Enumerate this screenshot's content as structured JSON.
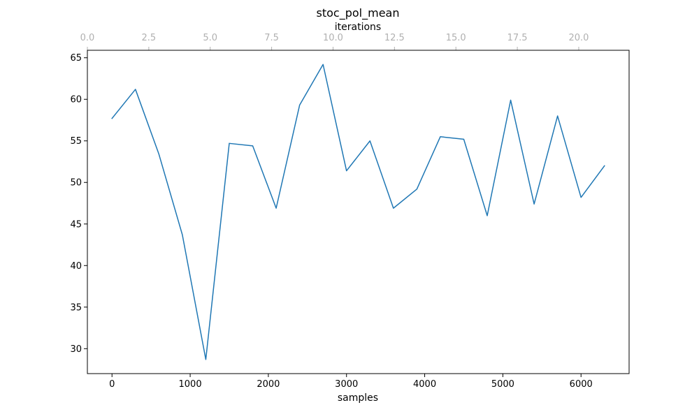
{
  "chart_data": {
    "type": "line",
    "title": "stoc_pol_mean",
    "xlabel": "samples",
    "ylabel": "",
    "secondary_xlabel": "iterations",
    "xlim": [
      -315,
      6615
    ],
    "ylim": [
      27,
      65.9
    ],
    "xticks": [
      0,
      1000,
      2000,
      3000,
      4000,
      5000,
      6000
    ],
    "xtick_labels": [
      "0",
      "1000",
      "2000",
      "3000",
      "4000",
      "5000",
      "6000"
    ],
    "yticks": [
      30,
      35,
      40,
      45,
      50,
      55,
      60,
      65
    ],
    "ytick_labels": [
      "30",
      "35",
      "40",
      "45",
      "50",
      "55",
      "60",
      "65"
    ],
    "secondary_xlim": [
      0,
      22.05
    ],
    "secondary_xticks": [
      0,
      2.5,
      5,
      7.5,
      10,
      12.5,
      15,
      17.5,
      20
    ],
    "secondary_xtick_labels": [
      "0.0",
      "2.5",
      "5.0",
      "7.5",
      "10.0",
      "12.5",
      "15.0",
      "17.5",
      "20.0"
    ],
    "grid": false,
    "series": [
      {
        "color": "#1f77b4",
        "x": [
          0,
          300,
          600,
          900,
          1200,
          1500,
          1800,
          2100,
          2400,
          2700,
          3000,
          3300,
          3600,
          3900,
          4200,
          4500,
          4800,
          5100,
          5400,
          5700,
          6000,
          6300
        ],
        "y": [
          57.7,
          61.2,
          53.4,
          43.7,
          28.7,
          54.7,
          54.4,
          46.9,
          59.3,
          64.2,
          51.4,
          55.0,
          46.9,
          49.2,
          55.5,
          55.2,
          46.0,
          59.9,
          47.4,
          58.0,
          48.2,
          52.0
        ]
      }
    ],
    "secondary_axis_color": "#b0b0b0"
  }
}
